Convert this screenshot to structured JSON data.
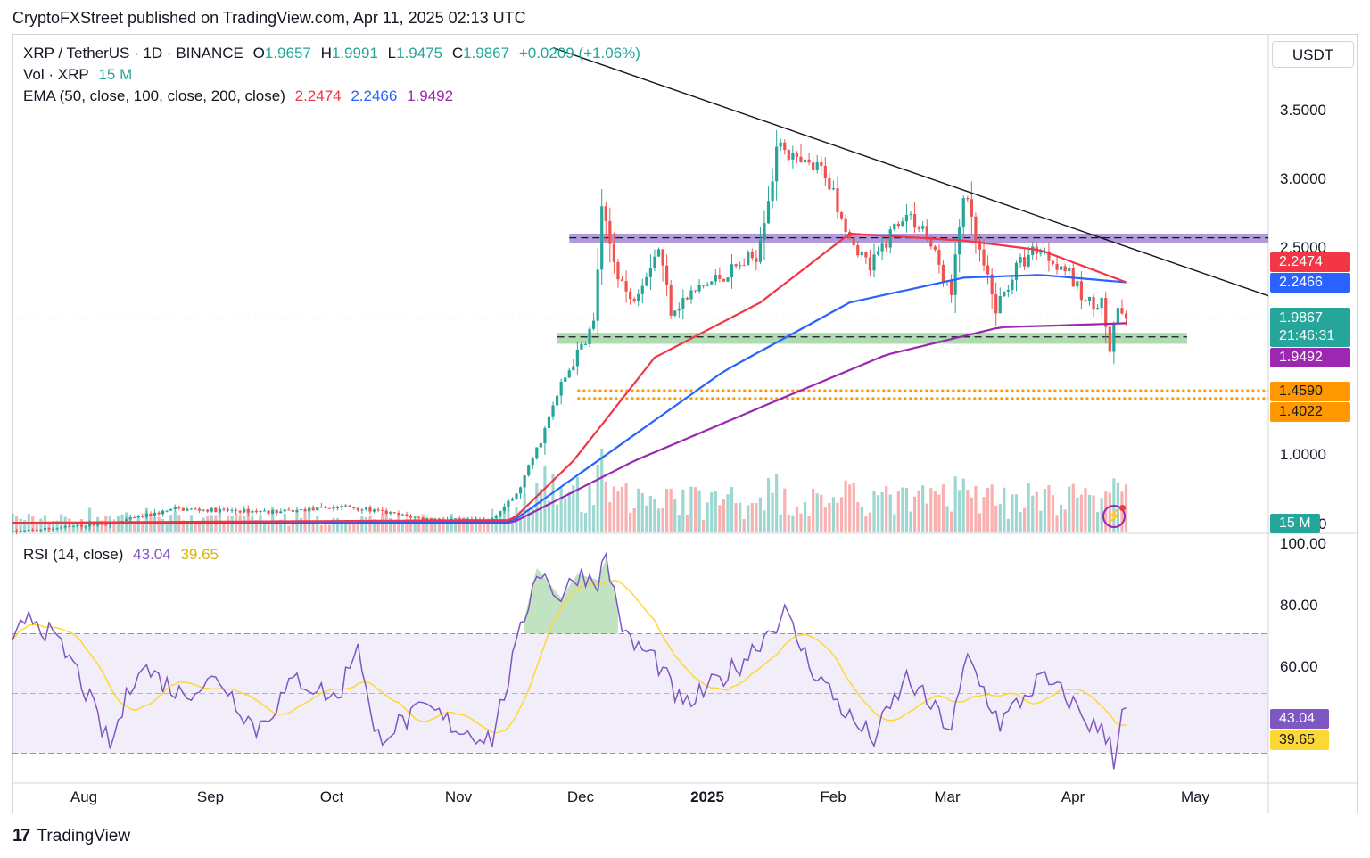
{
  "header": {
    "published": "CryptoFXStreet published on TradingView.com, Apr 11, 2025 02:13 UTC"
  },
  "legend": {
    "symbol": "XRP / TetherUS · 1D · BINANCE",
    "o_label": "O",
    "o": "1.9657",
    "h_label": "H",
    "h": "1.9991",
    "l_label": "L",
    "l": "1.9475",
    "c_label": "C",
    "c": "1.9867",
    "change": "+0.0209 (+1.06%)",
    "vol": "Vol · XRP",
    "vol_value": "15 M",
    "ema": "EMA (50, close, 100, close, 200, close)",
    "ema50": "2.2474",
    "ema100": "2.2466",
    "ema200": "1.9492",
    "rsi": "RSI (14, close)",
    "rsi_value": "43.04",
    "rsi_ma": "39.65"
  },
  "price_axis": {
    "currency": "USDT",
    "ticks": [
      "3.5000",
      "3.0000",
      "2.5000",
      "1.0000",
      "0"
    ],
    "tags": {
      "ema50": "2.2474",
      "ema100": "2.2466",
      "last": "1.9867",
      "countdown": "21:46:31",
      "ema200": "1.9492",
      "level1": "1.4590",
      "level2": "1.4022",
      "volume": "15 M"
    }
  },
  "rsi_axis": {
    "ticks": [
      "100.00",
      "80.00",
      "60.00"
    ],
    "tags": {
      "rsi": "43.04",
      "ma": "39.65"
    }
  },
  "time_axis": [
    "Aug",
    "Sep",
    "Oct",
    "Nov",
    "Dec",
    "2025",
    "Feb",
    "Mar",
    "Apr",
    "May"
  ],
  "branding": {
    "logo": "TradingView"
  },
  "colors": {
    "up": "#26a69a",
    "down": "#ef5350",
    "ema50": "#f23645",
    "ema100": "#2962ff",
    "ema200": "#9c27b0",
    "rsi": "#7e57c2",
    "rsi_ma": "#fdd835",
    "level": "#ff9800",
    "resistance_zone": "#7e57c2",
    "support_zone": "#4caf50"
  },
  "chart_data": {
    "type": "candlestick",
    "x_range": [
      "2024-07-10",
      "2025-05-15"
    ],
    "y_range": [
      0.45,
      3.9
    ],
    "anchors": [
      [
        "2024-07-10",
        0.43
      ],
      [
        "2024-08-05",
        0.5
      ],
      [
        "2024-08-20",
        0.6
      ],
      [
        "2024-09-15",
        0.58
      ],
      [
        "2024-10-01",
        0.62
      ],
      [
        "2024-10-20",
        0.53
      ],
      [
        "2024-11-05",
        0.51
      ],
      [
        "2024-11-12",
        0.7
      ],
      [
        "2024-11-18",
        1.1
      ],
      [
        "2024-11-23",
        1.5
      ],
      [
        "2024-12-01",
        1.95
      ],
      [
        "2024-12-03",
        2.75
      ],
      [
        "2024-12-06",
        2.4
      ],
      [
        "2024-12-10",
        2.1
      ],
      [
        "2024-12-17",
        2.5
      ],
      [
        "2024-12-20",
        2.05
      ],
      [
        "2024-12-27",
        2.2
      ],
      [
        "2025-01-05",
        2.35
      ],
      [
        "2025-01-10",
        2.45
      ],
      [
        "2025-01-16",
        3.3
      ],
      [
        "2025-01-20",
        3.1
      ],
      [
        "2025-01-27",
        3.05
      ],
      [
        "2025-02-02",
        2.6
      ],
      [
        "2025-02-07",
        2.35
      ],
      [
        "2025-02-15",
        2.75
      ],
      [
        "2025-02-20",
        2.65
      ],
      [
        "2025-02-27",
        2.15
      ],
      [
        "2025-03-02",
        2.9
      ],
      [
        "2025-03-05",
        2.55
      ],
      [
        "2025-03-10",
        2.05
      ],
      [
        "2025-03-15",
        2.35
      ],
      [
        "2025-03-20",
        2.5
      ],
      [
        "2025-03-27",
        2.35
      ],
      [
        "2025-04-01",
        2.1
      ],
      [
        "2025-04-05",
        2.1
      ],
      [
        "2025-04-07",
        1.75
      ],
      [
        "2025-04-09",
        2.05
      ],
      [
        "2025-04-10",
        1.99
      ]
    ],
    "ema50_points": [
      [
        "2024-07-10",
        0.5
      ],
      [
        "2024-11-10",
        0.52
      ],
      [
        "2024-11-25",
        0.95
      ],
      [
        "2024-12-15",
        1.7
      ],
      [
        "2025-01-10",
        2.1
      ],
      [
        "2025-02-01",
        2.6
      ],
      [
        "2025-03-01",
        2.55
      ],
      [
        "2025-03-20",
        2.48
      ],
      [
        "2025-04-10",
        2.2474
      ]
    ],
    "ema100_points": [
      [
        "2024-07-10",
        0.5
      ],
      [
        "2024-11-10",
        0.51
      ],
      [
        "2024-12-01",
        0.95
      ],
      [
        "2025-01-01",
        1.6
      ],
      [
        "2025-02-01",
        2.1
      ],
      [
        "2025-03-01",
        2.28
      ],
      [
        "2025-03-20",
        2.3
      ],
      [
        "2025-04-10",
        2.2466
      ]
    ],
    "ema200_points": [
      [
        "2024-07-10",
        0.5
      ],
      [
        "2024-11-10",
        0.5
      ],
      [
        "2024-12-10",
        0.95
      ],
      [
        "2025-01-15",
        1.4
      ],
      [
        "2025-02-10",
        1.72
      ],
      [
        "2025-03-10",
        1.92
      ],
      [
        "2025-04-10",
        1.9492
      ]
    ],
    "resistance_zone": [
      2.53,
      2.6
    ],
    "support_zone": [
      1.8,
      1.88
    ],
    "support_line": 1.85,
    "resistance_line": 2.57,
    "levels": [
      1.459,
      1.4022
    ],
    "trendline": [
      [
        "2024-11-20",
        3.95
      ],
      [
        "2025-05-15",
        2.2
      ]
    ],
    "last_price": 1.9867,
    "rsi": {
      "y_range": [
        20,
        100
      ],
      "upper_band": 70,
      "middle": 50,
      "lower_band": 30,
      "anchors": [
        [
          "2024-07-10",
          65
        ],
        [
          "2024-07-14",
          78
        ],
        [
          "2024-07-25",
          60
        ],
        [
          "2024-08-03",
          32
        ],
        [
          "2024-08-10",
          60
        ],
        [
          "2024-08-20",
          50
        ],
        [
          "2024-08-30",
          55
        ],
        [
          "2024-09-08",
          38
        ],
        [
          "2024-09-18",
          55
        ],
        [
          "2024-09-28",
          48
        ],
        [
          "2024-10-03",
          68
        ],
        [
          "2024-10-07",
          35
        ],
        [
          "2024-10-20",
          45
        ],
        [
          "2024-10-28",
          38
        ],
        [
          "2024-11-05",
          35
        ],
        [
          "2024-11-12",
          70
        ],
        [
          "2024-11-16",
          92
        ],
        [
          "2024-11-22",
          82
        ],
        [
          "2024-11-26",
          90
        ],
        [
          "2024-12-01",
          88
        ],
        [
          "2024-12-03",
          95
        ],
        [
          "2024-12-08",
          68
        ],
        [
          "2024-12-15",
          62
        ],
        [
          "2024-12-22",
          45
        ],
        [
          "2025-01-05",
          60
        ],
        [
          "2025-01-16",
          77
        ],
        [
          "2025-01-22",
          60
        ],
        [
          "2025-02-02",
          40
        ],
        [
          "2025-02-07",
          35
        ],
        [
          "2025-02-15",
          55
        ],
        [
          "2025-02-26",
          38
        ],
        [
          "2025-03-02",
          62
        ],
        [
          "2025-03-10",
          40
        ],
        [
          "2025-03-20",
          55
        ],
        [
          "2025-03-27",
          48
        ],
        [
          "2025-04-01",
          40
        ],
        [
          "2025-04-06",
          35
        ],
        [
          "2025-04-07",
          28
        ],
        [
          "2025-04-09",
          45
        ],
        [
          "2025-04-10",
          43.04
        ]
      ],
      "ma_last": 39.65
    },
    "volume": {
      "max": 15,
      "unit": "M",
      "last": 15
    }
  }
}
